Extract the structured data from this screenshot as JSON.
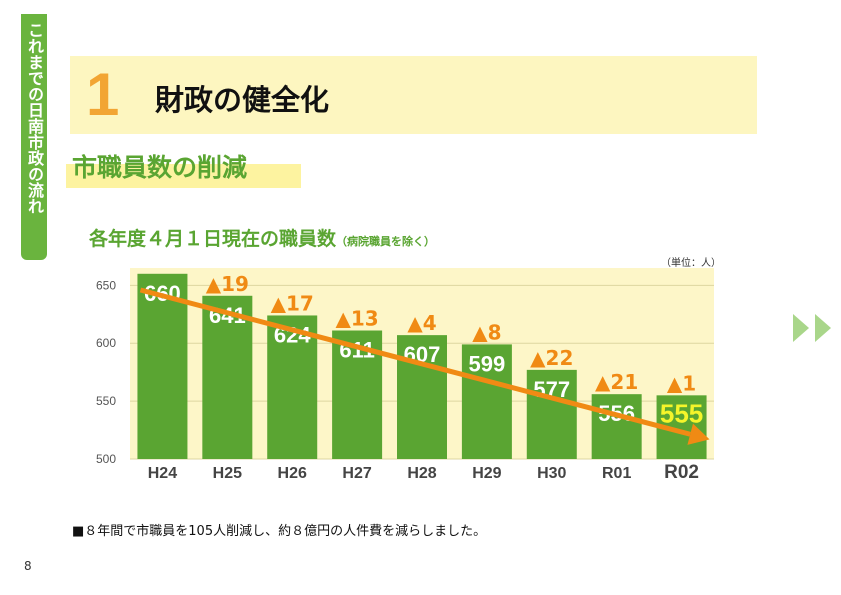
{
  "side_tab": "これまでの日南市政の流れ",
  "section": {
    "number": "1",
    "title": "財政の健全化"
  },
  "subheading": "市職員数の削減",
  "chart_title": "各年度４月１日現在の職員数",
  "chart_subtitle": "（病院職員を除く）",
  "unit": "（単位：人）",
  "footnote": "■８年間で市職員を105人削減し、約８億円の人件費を減らしました。",
  "page_number": "8",
  "colors": {
    "bar": "#5aa532",
    "plot_bg": "#fdf6c8",
    "trend_arrow": "#f08a14",
    "change_label": "#f08a14",
    "highlight_value": "#f5f52a",
    "nav_arrows": "#a9d68a"
  },
  "chart_data": {
    "type": "bar",
    "categories": [
      "H24",
      "H25",
      "H26",
      "H27",
      "H28",
      "H29",
      "H30",
      "R01",
      "R02"
    ],
    "values": [
      660,
      641,
      624,
      611,
      607,
      599,
      577,
      556,
      555
    ],
    "change_labels": [
      "",
      "▲19",
      "▲17",
      "▲13",
      "▲4",
      "▲8",
      "▲22",
      "▲21",
      "▲1"
    ],
    "yticks": [
      500,
      550,
      600,
      650
    ],
    "ylim": [
      500,
      665
    ],
    "xlabel": "",
    "ylabel": "",
    "grid": true,
    "trend_arrow": true
  }
}
